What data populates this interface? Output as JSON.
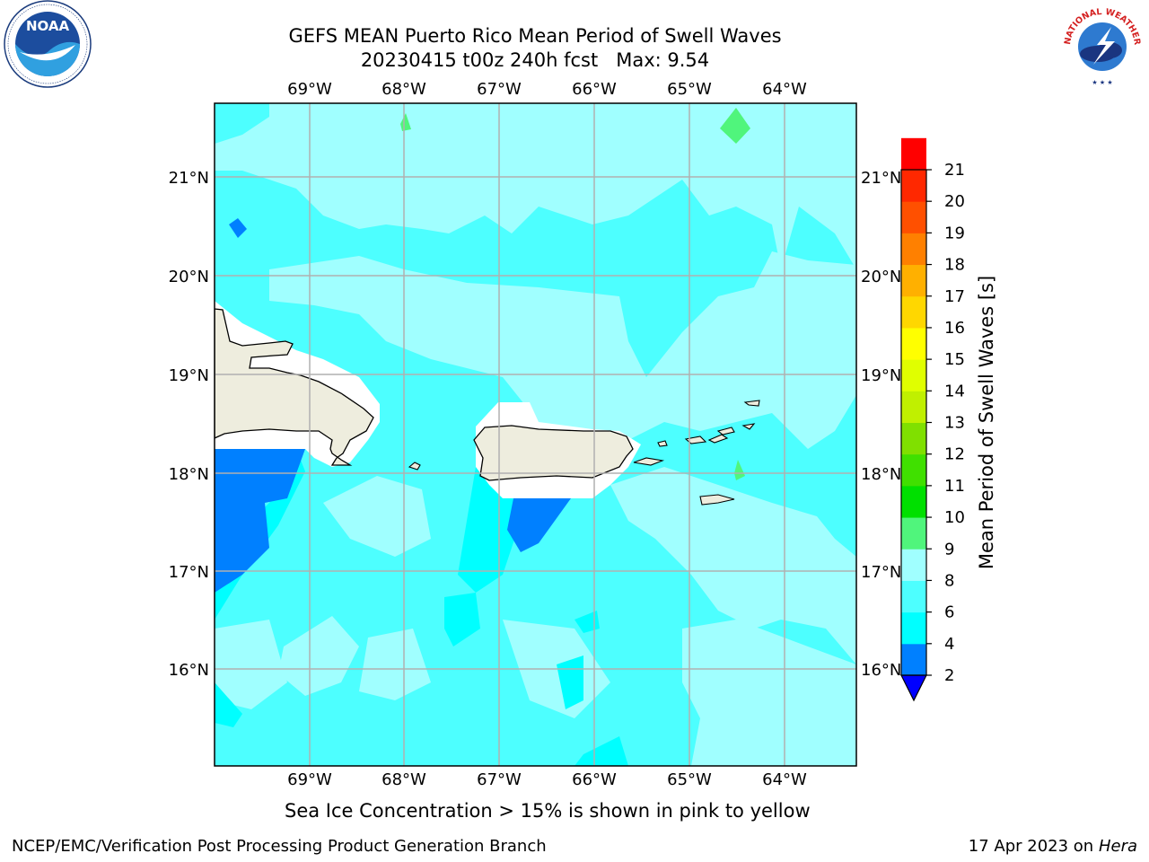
{
  "header": {
    "title_line1": "GEFS MEAN Puerto Rico Mean Period of Swell Waves",
    "title_line2": "20230415 t00z 240h fcst   Max: 9.54"
  },
  "map": {
    "lon_ticks": [
      "69°W",
      "68°W",
      "67°W",
      "66°W",
      "65°W",
      "64°W"
    ],
    "lat_ticks": [
      "21°N",
      "20°N",
      "19°N",
      "18°N",
      "17°N",
      "16°N"
    ],
    "land_color": "#eeedde",
    "grid_color": "#b0b0b0"
  },
  "colorbar": {
    "label": "Mean Period of Swell Waves [s]",
    "ticks": [
      "2",
      "4",
      "6",
      "8",
      "9",
      "10",
      "11",
      "12",
      "13",
      "14",
      "15",
      "16",
      "17",
      "18",
      "19",
      "20",
      "21"
    ],
    "colors": [
      "#0080ff",
      "#00ffff",
      "#4dffff",
      "#a0ffff",
      "#50f57c",
      "#00e000",
      "#40e000",
      "#80e000",
      "#c0f000",
      "#e0ff00",
      "#ffff00",
      "#ffd700",
      "#ffb000",
      "#ff8000",
      "#ff5000",
      "#ff2800",
      "#ff0000"
    ],
    "under_color": "#0000ff"
  },
  "footer": {
    "note": "Sea Ice Concentration > 15% is shown in pink to yellow",
    "credit": "NCEP/EMC/Verification Post Processing Product Generation Branch",
    "date_prefix": "17 Apr 2023 on ",
    "date_machine": "Hera"
  },
  "logos": {
    "left": "noaa-logo",
    "right": "nws-logo",
    "noaa_text": "NOAA",
    "nws_text": "NATIONAL WEATHER SERVICE"
  }
}
